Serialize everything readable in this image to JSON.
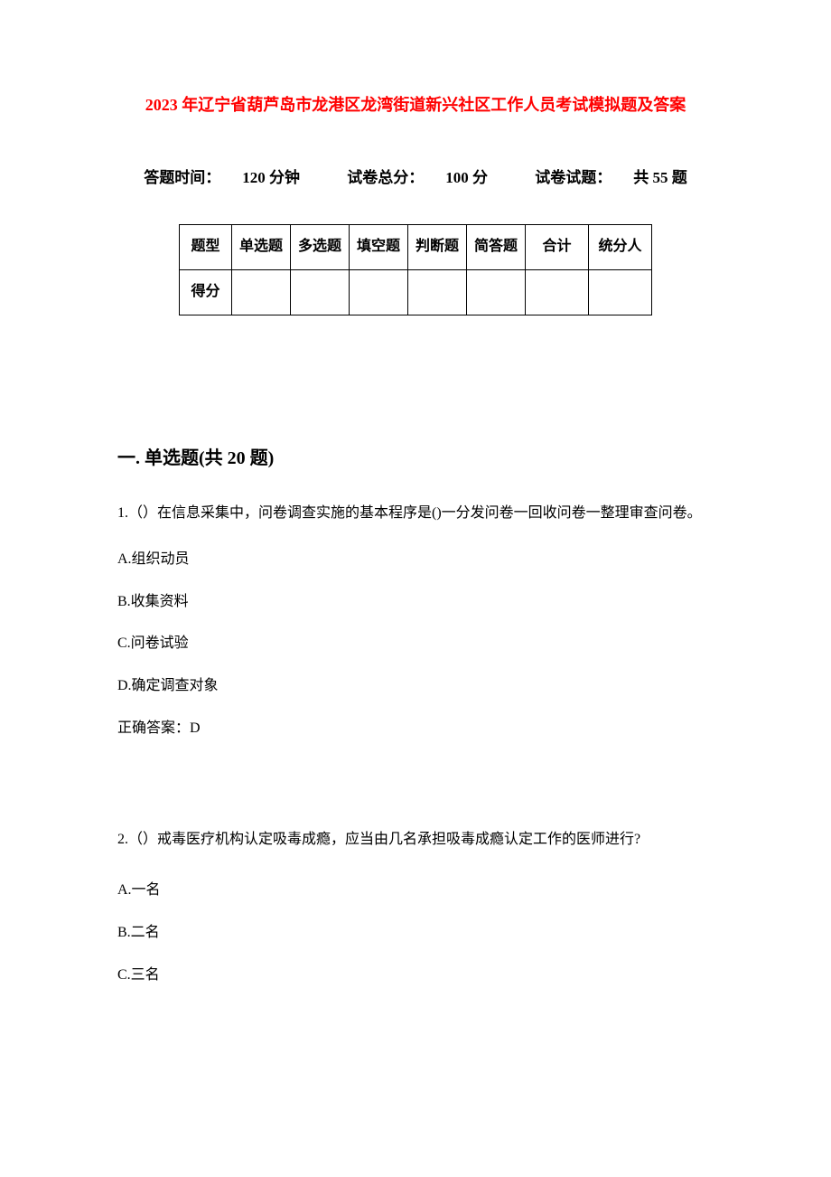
{
  "title": "2023 年辽宁省葫芦岛市龙港区龙湾街道新兴社区工作人员考试模拟题及答案",
  "exam_info": {
    "time_label": "答题时间：",
    "time_value": "120 分钟",
    "total_label": "试卷总分：",
    "total_value": "100 分",
    "count_label": "试卷试题：",
    "count_value": "共 55 题"
  },
  "table": {
    "row1_label": "题型",
    "row2_label": "得分",
    "headers": [
      "单选题",
      "多选题",
      "填空题",
      "判断题",
      "简答题",
      "合计",
      "统分人"
    ]
  },
  "section_heading": "一. 单选题(共 20 题)",
  "q1": {
    "text": "1.（）在信息采集中，问卷调查实施的基本程序是()一分发问卷一回收问卷一整理审查问卷。",
    "a": "A.组织动员",
    "b": "B.收集资料",
    "c": "C.问卷试验",
    "d": "D.确定调查对象",
    "answer": "正确答案：D"
  },
  "q2": {
    "text": "2.（）戒毒医疗机构认定吸毒成瘾，应当由几名承担吸毒成瘾认定工作的医师进行?",
    "a": "A.一名",
    "b": "B.二名",
    "c": "C.三名"
  }
}
